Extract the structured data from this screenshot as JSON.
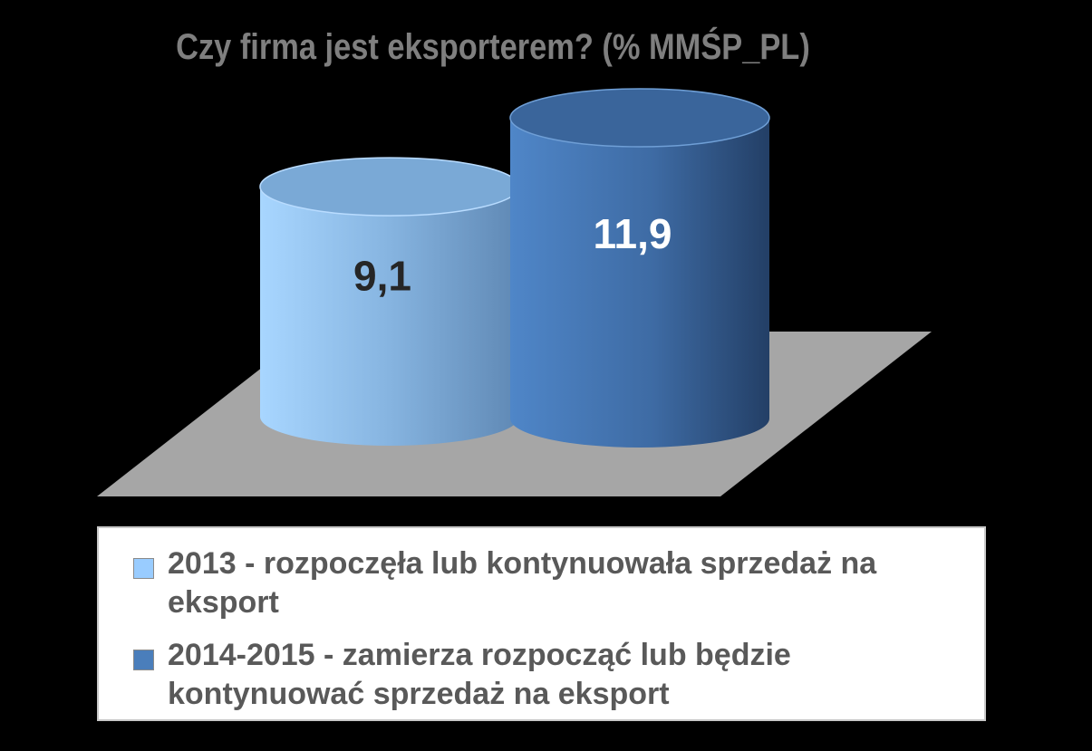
{
  "chart_data": {
    "type": "bar",
    "title": "Czy firma jest eksporterem? (% MMŚP_PL)",
    "categories": [
      ""
    ],
    "series": [
      {
        "name": "2013 - rozpoczęła lub kontynuowała sprzedaż na eksport",
        "values": [
          9.1
        ],
        "data_label": "9,1",
        "color": "#8fbfe8"
      },
      {
        "name": "2014-2015 - zamierza rozpocząć lub będzie kontynuować sprzedaż na eksport",
        "values": [
          11.9
        ],
        "data_label": "11,9",
        "color": "#3f6fa8"
      }
    ],
    "shape": "cylinder",
    "legend_position": "bottom",
    "background": "#000000",
    "floor_color": "#a6a6a6"
  }
}
